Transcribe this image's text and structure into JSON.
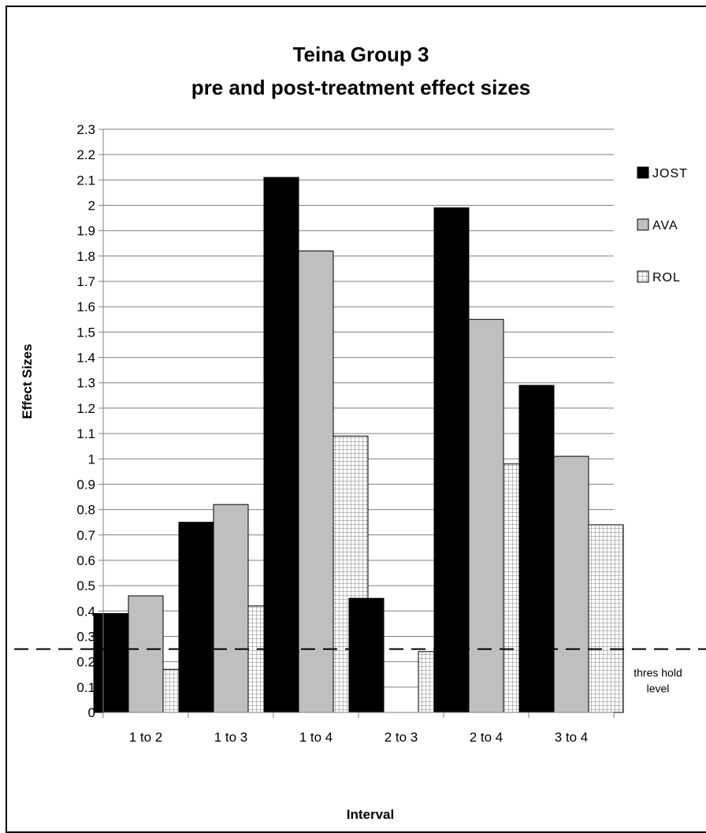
{
  "chart_data": {
    "type": "bar",
    "title": [
      "Teina Group 3",
      "pre and post-treatment effect sizes"
    ],
    "xlabel": "Interval",
    "ylabel": "Effect Sizes",
    "categories": [
      "1 to 2",
      "1 to 3",
      "1 to 4",
      "2 to 3",
      "2 to 4",
      "3 to 4"
    ],
    "series": [
      {
        "name": "JOST",
        "values": [
          0.39,
          0.75,
          2.11,
          0.45,
          1.99,
          1.29
        ],
        "color": "#000000",
        "pattern": "solid"
      },
      {
        "name": "AVA",
        "values": [
          0.46,
          0.82,
          1.82,
          null,
          1.55,
          1.01
        ],
        "color": "#bfbfbf",
        "pattern": "solid"
      },
      {
        "name": "ROL",
        "values": [
          0.17,
          0.42,
          1.09,
          0.24,
          0.98,
          0.74
        ],
        "color": "#ffffff",
        "pattern": "grid"
      }
    ],
    "ylim": [
      0,
      2.3
    ],
    "yticks": [
      "0",
      "0.1",
      "0.2",
      "0.3",
      "0.4",
      "0.5",
      "0.6",
      "0.7",
      "0.8",
      "0.9",
      "1",
      "1.1",
      "1.2",
      "1.3",
      "1.4",
      "1.5",
      "1.6",
      "1.7",
      "1.8",
      "1.9",
      "2",
      "2.1",
      "2.2",
      "2.3"
    ],
    "grid": true,
    "legend_position": "right",
    "threshold": {
      "value": 0.25,
      "label": [
        "thres hold",
        "level"
      ]
    }
  }
}
